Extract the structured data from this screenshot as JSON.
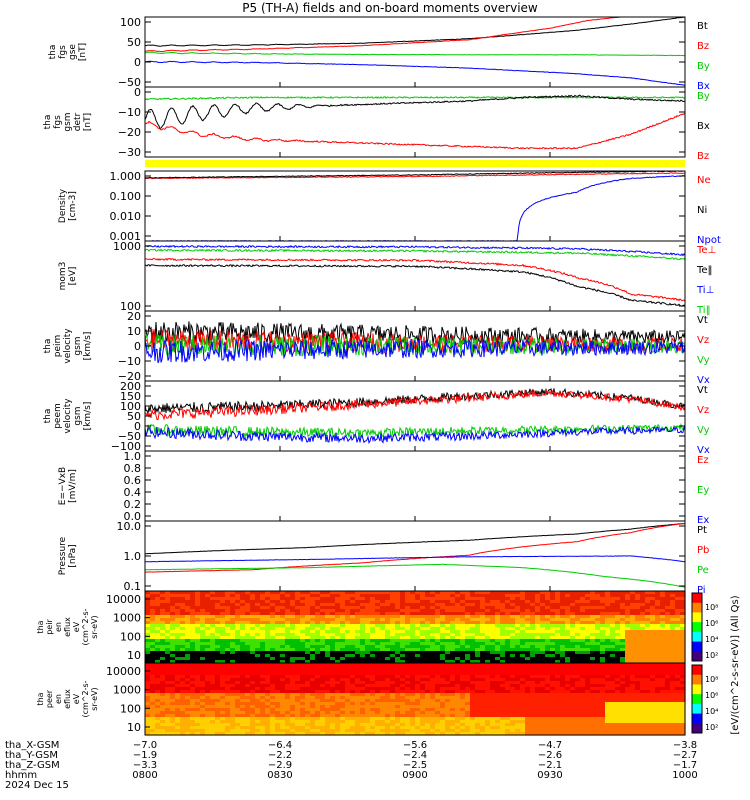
{
  "title": "P5 (TH-A) fields and on-board moments overview",
  "chart_data": {
    "type": "line",
    "panels": [
      {
        "id": "fgs-gse",
        "ylabel": [
          "tha",
          "fgs",
          "gse",
          "[nT]"
        ],
        "yticks": [
          "100",
          "50",
          "0",
          "−50"
        ],
        "ylim": [
          -90,
          110
        ],
        "legend": [
          {
            "name": "Bt",
            "color": "#000000"
          },
          {
            "name": "Bz",
            "color": "#ff0000"
          },
          {
            "name": "By",
            "color": "#00cc00"
          },
          {
            "name": "Bx",
            "color": "#0000ff"
          }
        ],
        "series": [
          {
            "name": "Bt",
            "x": [
              0,
              0.2,
              0.4,
              0.6,
              0.8,
              0.9,
              1.0
            ],
            "y": [
              28,
              30,
              35,
              48,
              72,
              90,
              110
            ]
          },
          {
            "name": "Bz",
            "x": [
              0,
              0.2,
              0.4,
              0.6,
              0.75,
              0.82,
              0.88
            ],
            "y": [
              12,
              18,
              28,
              45,
              78,
              100,
              110
            ]
          },
          {
            "name": "By",
            "x": [
              0,
              0.2,
              0.4,
              0.6,
              0.8,
              1.0
            ],
            "y": [
              8,
              5,
              3,
              2,
              2,
              0
            ]
          },
          {
            "name": "Bx",
            "x": [
              0,
              0.2,
              0.4,
              0.6,
              0.8,
              0.9,
              1.0
            ],
            "y": [
              -18,
              -20,
              -26,
              -36,
              -52,
              -64,
              -85
            ]
          }
        ]
      },
      {
        "id": "fgs-gsm",
        "ylabel": [
          "tha",
          "fgs",
          "gsm",
          "detr",
          "[nT]"
        ],
        "yticks": [
          "0",
          "−10",
          "−20",
          "−30"
        ],
        "ylim": [
          -35,
          5
        ],
        "legend": [
          {
            "name": "By",
            "color": "#00cc00"
          },
          {
            "name": "Bx",
            "color": "#000000"
          },
          {
            "name": "Bz",
            "color": "#ff0000"
          }
        ],
        "series": [
          {
            "name": "By",
            "x": [
              0,
              0.2,
              0.4,
              0.6,
              0.8,
              1.0
            ],
            "y": [
              -2,
              -1,
              -1,
              -1,
              -1,
              -1
            ]
          },
          {
            "name": "Bx",
            "x": [
              0,
              0.1,
              0.2,
              0.3,
              0.4,
              0.5,
              0.6,
              0.7,
              0.8,
              0.9,
              1.0
            ],
            "y": [
              -14,
              -10,
              -7,
              -6,
              -5,
              -4,
              -3,
              -1,
              0,
              -2,
              -3
            ]
          },
          {
            "name": "Bz",
            "x": [
              0,
              0.1,
              0.2,
              0.3,
              0.4,
              0.5,
              0.6,
              0.7,
              0.8,
              0.9,
              1.0
            ],
            "y": [
              -16,
              -22,
              -25,
              -26,
              -27,
              -28,
              -29,
              -30,
              -30,
              -22,
              -10
            ]
          }
        ]
      },
      {
        "id": "density",
        "ylabel": [
          "Density",
          "[cm-3]"
        ],
        "yticks": [
          "1.000",
          "0.100",
          "0.010",
          "0.001"
        ],
        "scale": "log",
        "ylim": [
          0.001,
          2
        ],
        "legend": [
          {
            "name": "Ne",
            "color": "#ff0000"
          },
          {
            "name": "Ni",
            "color": "#000000"
          },
          {
            "name": "Npot",
            "color": "#0000ff"
          }
        ],
        "series": [
          {
            "name": "Ne",
            "x": [
              0,
              0.5,
              1.0
            ],
            "y": [
              0.9,
              1.1,
              1.6
            ]
          },
          {
            "name": "Ni",
            "x": [
              0,
              0.5,
              1.0
            ],
            "y": [
              0.95,
              1.3,
              2.0
            ]
          },
          {
            "name": "Npot",
            "x": [
              0.0,
              0.69,
              0.8,
              0.9,
              1.0
            ],
            "y": [
              0.001,
              0.001,
              0.2,
              0.9,
              1.2
            ]
          }
        ]
      },
      {
        "id": "mom-temp",
        "ylabel": [
          "mom3",
          "[eV]"
        ],
        "yticks": [
          "1000",
          "100"
        ],
        "scale": "log",
        "ylim": [
          100,
          10000
        ],
        "legend": [
          {
            "name": "Te⊥",
            "color": "#ff0000"
          },
          {
            "name": "Te‖",
            "color": "#000000"
          },
          {
            "name": "Ti⊥",
            "color": "#0000ff"
          },
          {
            "name": "Ti‖",
            "color": "#00cc00"
          }
        ],
        "series": [
          {
            "name": "Ti⊥",
            "x": [
              0,
              0.5,
              0.8,
              1.0
            ],
            "y": [
              7000,
              6800,
              6000,
              4000
            ]
          },
          {
            "name": "Ti‖",
            "x": [
              0,
              0.5,
              0.8,
              1.0
            ],
            "y": [
              5500,
              5200,
              4500,
              3000
            ]
          },
          {
            "name": "Te⊥",
            "x": [
              0,
              0.5,
              0.7,
              0.8,
              0.9,
              1.0
            ],
            "y": [
              3000,
              2800,
              2000,
              900,
              300,
              200
            ]
          },
          {
            "name": "Te‖",
            "x": [
              0,
              0.5,
              0.7,
              0.8,
              0.9,
              1.0
            ],
            "y": [
              2000,
              1900,
              1300,
              500,
              200,
              140
            ]
          }
        ]
      },
      {
        "id": "peim-velocity",
        "ylabel": [
          "tha",
          "peim",
          "velocity",
          "gsm",
          "[km/s]"
        ],
        "yticks": [
          "20",
          "10",
          "0",
          "−10",
          "−20"
        ],
        "ylim": [
          -25,
          25
        ],
        "legend": [
          {
            "name": "Vt",
            "color": "#000000"
          },
          {
            "name": "Vz",
            "color": "#ff0000"
          },
          {
            "name": "Vy",
            "color": "#00cc00"
          },
          {
            "name": "Vx",
            "color": "#0000ff"
          }
        ],
        "series": [
          {
            "name": "Vt",
            "x": [
              0,
              0.5,
              1.0
            ],
            "y": [
              10,
              8,
              6
            ]
          },
          {
            "name": "Vz",
            "x": [
              0,
              0.5,
              1.0
            ],
            "y": [
              4,
              2,
              1
            ]
          },
          {
            "name": "Vy",
            "x": [
              0,
              0.5,
              1.0
            ],
            "y": [
              0,
              0,
              0
            ]
          },
          {
            "name": "Vx",
            "x": [
              0,
              0.5,
              1.0
            ],
            "y": [
              -4,
              -2,
              -1
            ]
          }
        ]
      },
      {
        "id": "peem-velocity",
        "ylabel": [
          "tha",
          "peem",
          "velocity",
          "gsm",
          "[km/s]"
        ],
        "yticks": [
          "200",
          "150",
          "100",
          "50",
          "0",
          "−50",
          "−100"
        ],
        "ylim": [
          -120,
          210
        ],
        "legend": [
          {
            "name": "Vt",
            "color": "#000000"
          },
          {
            "name": "Vz",
            "color": "#ff0000"
          },
          {
            "name": "Vy",
            "color": "#00cc00"
          },
          {
            "name": "Vx",
            "color": "#0000ff"
          }
        ],
        "series": [
          {
            "name": "Vt",
            "x": [
              0,
              0.2,
              0.4,
              0.6,
              0.75,
              0.9,
              1.0
            ],
            "y": [
              80,
              90,
              110,
              140,
              160,
              130,
              90
            ]
          },
          {
            "name": "Vz",
            "x": [
              0,
              0.2,
              0.4,
              0.6,
              0.75,
              0.9,
              1.0
            ],
            "y": [
              50,
              70,
              100,
              130,
              155,
              125,
              85
            ]
          },
          {
            "name": "Vy",
            "x": [
              0,
              0.2,
              0.4,
              0.6,
              0.8,
              1.0
            ],
            "y": [
              -20,
              -30,
              -35,
              -25,
              -15,
              -10
            ]
          },
          {
            "name": "Vx",
            "x": [
              0,
              0.2,
              0.4,
              0.6,
              0.8,
              1.0
            ],
            "y": [
              -30,
              -50,
              -60,
              -50,
              -30,
              -20
            ]
          }
        ]
      },
      {
        "id": "e-field",
        "ylabel": [
          "E=−VxB",
          "[mV/m]"
        ],
        "yticks": [
          "1.0",
          "0.8",
          "0.6",
          "0.4",
          "0.2",
          "0.0"
        ],
        "ylim": [
          0,
          1
        ],
        "legend": [
          {
            "name": "Ez",
            "color": "#ff0000"
          },
          {
            "name": "Ey",
            "color": "#00cc00"
          },
          {
            "name": "Ex",
            "color": "#0000ff"
          }
        ],
        "series": []
      },
      {
        "id": "pressure",
        "ylabel": [
          "Pressure",
          "[nPa]"
        ],
        "yticks": [
          "10.0",
          "1.0",
          "0.1"
        ],
        "scale": "log",
        "ylim": [
          0.06,
          12
        ],
        "legend": [
          {
            "name": "Pt",
            "color": "#000000"
          },
          {
            "name": "Pb",
            "color": "#ff0000"
          },
          {
            "name": "Pe",
            "color": "#00cc00"
          },
          {
            "name": "Pi",
            "color": "#0000ff"
          }
        ],
        "series": [
          {
            "name": "Pt",
            "x": [
              0,
              0.3,
              0.6,
              0.8,
              0.9,
              1.0
            ],
            "y": [
              1.0,
              1.6,
              2.8,
              4.5,
              6.5,
              10
            ]
          },
          {
            "name": "Pb",
            "x": [
              0,
              0.2,
              0.4,
              0.6,
              0.8,
              0.9,
              1.0
            ],
            "y": [
              0.25,
              0.3,
              0.5,
              0.9,
              2.5,
              5,
              10
            ]
          },
          {
            "name": "Pe",
            "x": [
              0,
              0.3,
              0.55,
              0.7,
              0.85,
              1.0
            ],
            "y": [
              0.3,
              0.35,
              0.45,
              0.35,
              0.18,
              0.08
            ]
          },
          {
            "name": "Pi",
            "x": [
              0,
              0.3,
              0.6,
              0.9,
              1.0
            ],
            "y": [
              0.55,
              0.65,
              0.8,
              0.85,
              0.55
            ]
          }
        ]
      }
    ],
    "spectrograms": [
      {
        "id": "peir",
        "ylabel": [
          "tha",
          "peir",
          "en",
          "eflux",
          "eV",
          "(cm^2-s-",
          "sr-eV)"
        ],
        "yticks": [
          "10000",
          "1000",
          "100",
          "10"
        ],
        "colorbar_ticks": [
          "10⁸",
          "10⁶",
          "10⁴",
          "10²"
        ]
      },
      {
        "id": "peer",
        "ylabel": [
          "tha",
          "peer",
          "en",
          "eflux",
          "eV",
          "(cm^2-s-",
          "sr-eV)"
        ],
        "yticks": [
          "10000",
          "1000",
          "100",
          "10"
        ],
        "colorbar_ticks": [
          "10⁸",
          "10⁶",
          "10⁴",
          "10²"
        ]
      }
    ],
    "colorbar_label": "[eV/(cm^2-s-sr-eV)] (All Qs)",
    "x_axis": {
      "rows": [
        {
          "label": "tha_X-GSM",
          "values": [
            "−7.0",
            "−6.4",
            "−5.6",
            "−4.7",
            "−3.8"
          ]
        },
        {
          "label": "tha_Y-GSM",
          "values": [
            "−1.9",
            "−2.2",
            "−2.4",
            "−2.6",
            "−2.7"
          ]
        },
        {
          "label": "tha_Z-GSM",
          "values": [
            "−3.3",
            "−2.9",
            "−2.5",
            "−2.1",
            "−1.7"
          ]
        },
        {
          "label": "hhmm",
          "values": [
            "0800",
            "0830",
            "0900",
            "0930",
            "1000"
          ]
        }
      ],
      "date": "2024 Dec 15"
    }
  }
}
